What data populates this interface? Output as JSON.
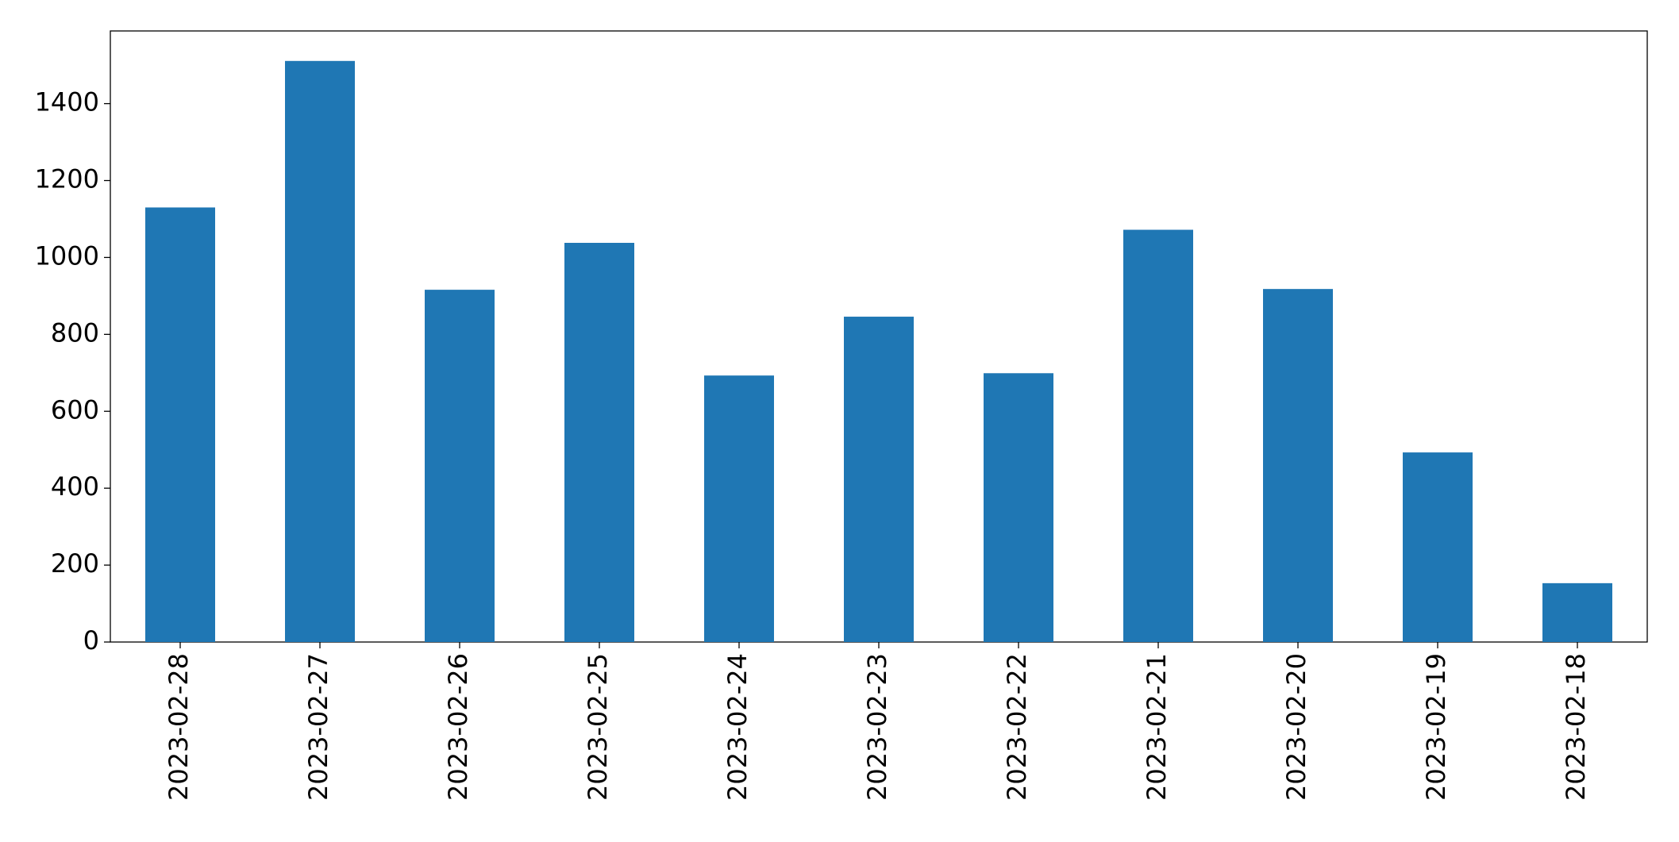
{
  "chart_data": {
    "type": "bar",
    "categories": [
      "2023-02-28",
      "2023-02-27",
      "2023-02-26",
      "2023-02-25",
      "2023-02-24",
      "2023-02-23",
      "2023-02-22",
      "2023-02-21",
      "2023-02-20",
      "2023-02-19",
      "2023-02-18"
    ],
    "values": [
      1130,
      1511,
      916,
      1038,
      693,
      846,
      699,
      1072,
      918,
      493,
      153
    ],
    "color": "#1f77b4",
    "ylim": [
      0,
      1589
    ],
    "yticks": [
      0,
      200,
      400,
      600,
      800,
      1000,
      1200,
      1400
    ],
    "grid": false
  }
}
